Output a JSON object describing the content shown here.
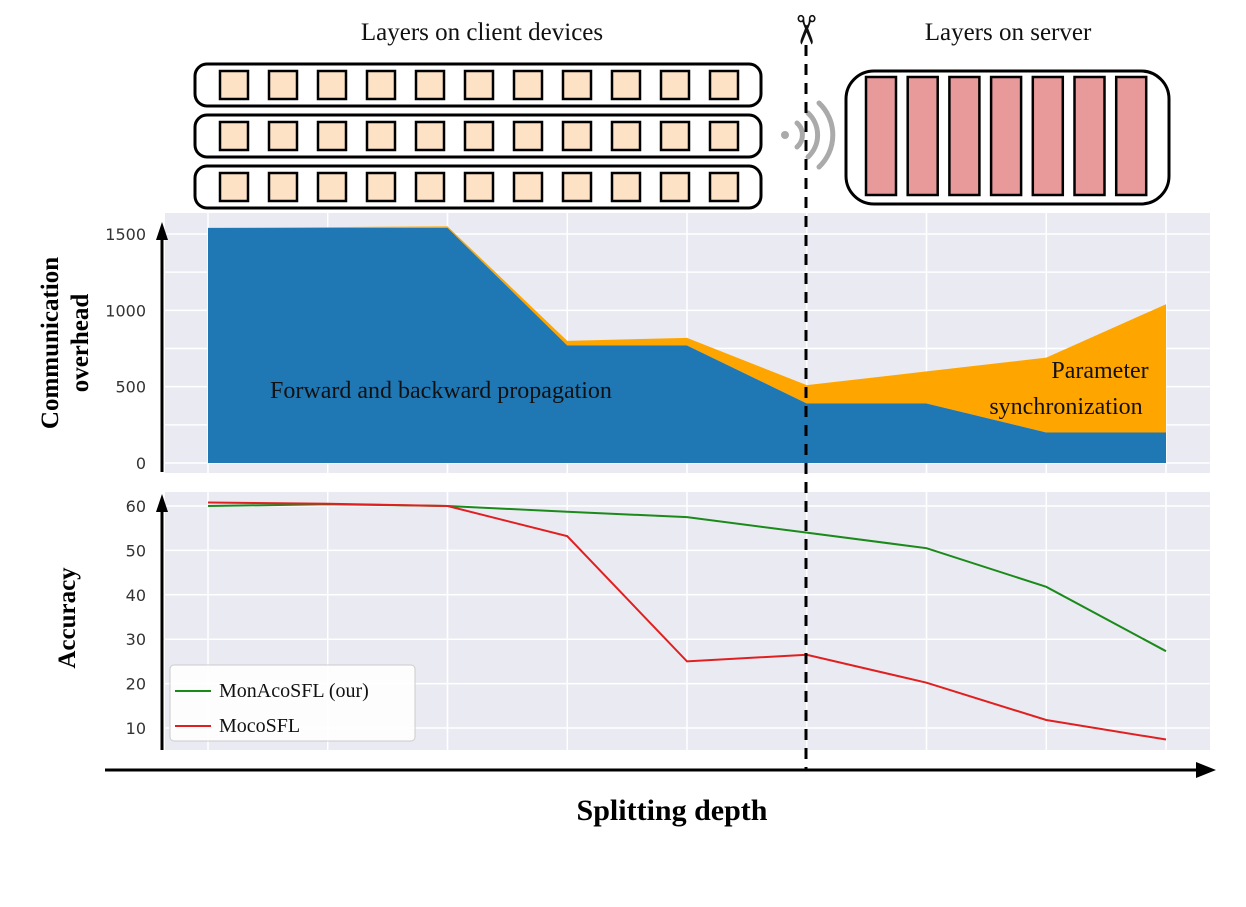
{
  "header": {
    "client_label": "Layers on client devices",
    "server_label": "Layers on server",
    "scissors_glyph": "✂"
  },
  "colors": {
    "forward_backward": "#1f77b4",
    "param_sync": "#ffa500",
    "client_block": "#fde2c6",
    "server_block": "#e8999a",
    "monaco": "#1a8a1a",
    "moco": "#e02020",
    "plot_bg": "#eaeaf2",
    "grid": "#ffffff"
  },
  "xlabel": "Splitting depth",
  "chart_data": [
    {
      "type": "area",
      "ylabel": [
        "Communication",
        "overhead"
      ],
      "ylim": [
        0,
        1550
      ],
      "yticks": [
        0,
        500,
        1000,
        1500
      ],
      "x": [
        1,
        2,
        3,
        4,
        5,
        6,
        7,
        8,
        9
      ],
      "grid": true,
      "series": [
        {
          "name": "Forward and backward propagation",
          "values": [
            1540,
            1540,
            1540,
            770,
            770,
            390,
            390,
            200,
            200
          ]
        },
        {
          "name": "Parameter synchronization",
          "values": [
            1540,
            1545,
            1550,
            800,
            820,
            510,
            600,
            690,
            1040
          ]
        }
      ],
      "annotations": [
        "Forward and backward propagation",
        "Parameter synchronization"
      ]
    },
    {
      "type": "line",
      "ylabel": "Accuracy",
      "ylim": [
        6,
        62
      ],
      "yticks": [
        10,
        20,
        30,
        40,
        50,
        60
      ],
      "x": [
        1,
        2,
        3,
        4,
        5,
        6,
        7,
        8,
        9
      ],
      "grid": true,
      "legend": "bottom-left",
      "series": [
        {
          "name": "MonAcoSFL (our)",
          "values": [
            60.0,
            60.4,
            60.0,
            58.7,
            57.5,
            54.0,
            50.5,
            41.8,
            27.3
          ]
        },
        {
          "name": "MocoSFL",
          "values": [
            60.8,
            60.5,
            60.0,
            53.2,
            25.0,
            26.5,
            20.2,
            11.8,
            7.4
          ]
        }
      ]
    }
  ]
}
